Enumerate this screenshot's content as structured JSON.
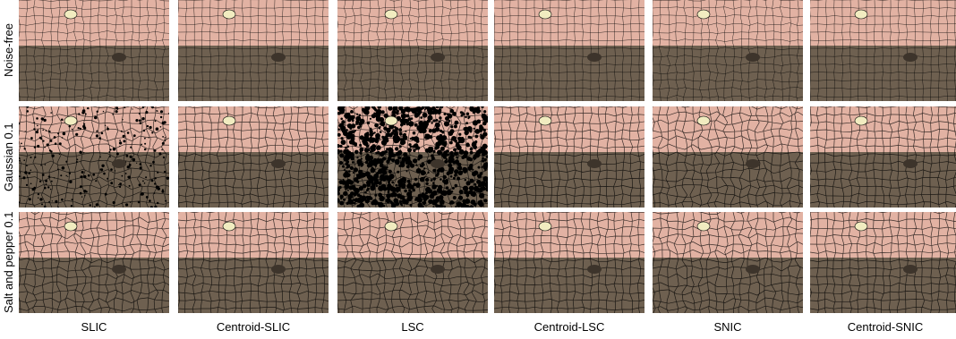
{
  "figure": {
    "rows": [
      {
        "label": "Noise-free",
        "noise": "none"
      },
      {
        "label": "Gaussian 0.1",
        "noise": "gaussian"
      },
      {
        "label": "Salt and pepper 0.1",
        "noise": "saltpepper"
      }
    ],
    "columns": [
      {
        "label": "SLIC"
      },
      {
        "label": "Centroid-SLIC"
      },
      {
        "label": "LSC"
      },
      {
        "label": "Centroid-LSC"
      },
      {
        "label": "SNIC"
      },
      {
        "label": "Centroid-SNIC"
      }
    ],
    "colors": {
      "upper_region": "#e2b2a3",
      "lower_region": "#6e6050",
      "highlight": "#f1ecc0",
      "boundary": "#000000",
      "background": "#ffffff"
    }
  }
}
